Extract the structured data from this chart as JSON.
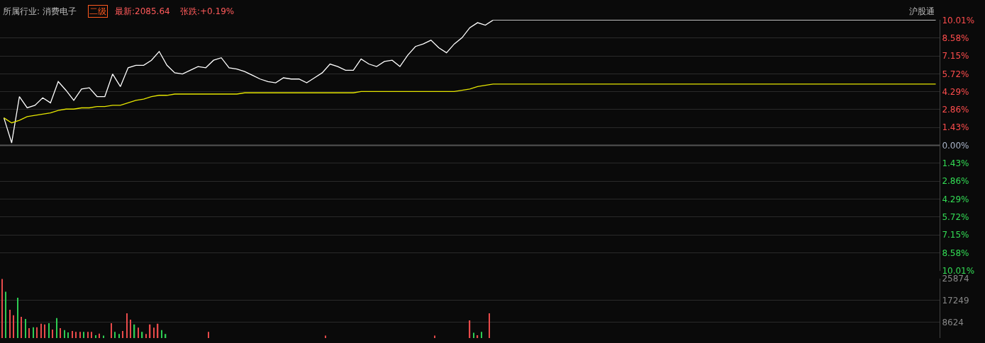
{
  "chart_data": [
    {
      "type": "line",
      "annotations": [
        "所属行业: 消费电子",
        "二级",
        "最新:2085.64",
        "张跌:+0.19%",
        "沪股通"
      ],
      "categories": [
        null,
        null,
        null,
        null,
        null,
        null,
        null,
        null,
        null,
        null,
        null,
        null,
        null,
        null,
        null,
        null,
        null,
        null,
        null,
        null,
        null,
        null,
        null,
        null,
        null,
        null,
        null,
        null,
        null,
        null,
        null,
        null,
        null,
        null,
        null,
        null,
        null,
        null,
        null,
        null,
        null,
        null,
        null,
        null,
        null,
        null,
        null,
        null,
        null,
        null,
        null,
        null,
        null,
        null,
        null,
        null,
        null,
        null,
        null,
        null,
        null,
        null,
        null,
        null,
        null,
        null,
        null,
        null,
        null,
        null,
        null,
        null,
        null,
        null,
        null,
        null,
        null,
        null,
        null,
        null,
        null,
        null,
        null,
        null,
        null,
        null,
        null,
        null,
        null,
        null,
        null,
        null,
        null,
        null,
        null,
        null,
        null,
        null,
        null,
        null,
        null,
        null,
        null,
        null,
        null,
        null,
        null,
        null,
        null,
        null,
        null,
        null,
        null,
        null,
        null,
        null,
        null,
        null,
        null,
        null,
        null
      ],
      "series": [
        {
          "color": "#ffffff",
          "values": [
            2.2,
            0.2,
            3.9,
            3.0,
            3.2,
            3.8,
            3.4,
            5.1,
            4.4,
            3.6,
            4.5,
            4.6,
            3.9,
            3.9,
            5.7,
            4.7,
            6.2,
            6.4,
            6.4,
            6.8,
            7.5,
            6.4,
            5.8,
            5.7,
            6.0,
            6.3,
            6.2,
            6.8,
            7.0,
            6.2,
            6.1,
            5.9,
            5.6,
            5.3,
            5.1,
            5.0,
            5.4,
            5.3,
            5.3,
            5.0,
            5.4,
            5.8,
            6.5,
            6.3,
            6.0,
            6.0,
            6.9,
            6.5,
            6.3,
            6.7,
            6.8,
            6.3,
            7.2,
            7.9,
            8.1,
            8.4,
            7.8,
            7.4,
            8.1,
            8.6,
            9.4,
            9.8,
            9.6,
            10.01,
            10.01,
            10.01,
            10.01,
            10.01,
            10.01,
            10.01,
            10.01,
            10.01,
            10.01,
            10.01,
            10.01,
            10.01,
            10.01,
            10.01,
            10.01,
            10.01,
            10.01,
            10.01,
            10.01,
            10.01,
            10.01,
            10.01,
            10.01,
            10.01,
            10.01,
            10.01,
            10.01,
            10.01,
            10.01,
            10.01,
            10.01,
            10.01,
            10.01,
            10.01,
            10.01,
            10.01,
            10.01,
            10.01,
            10.01,
            10.01,
            10.01,
            10.01,
            10.01,
            10.01,
            10.01,
            10.01,
            10.01,
            10.01,
            10.01,
            10.01,
            10.01,
            10.01,
            10.01,
            10.01,
            10.01,
            10.01,
            10.01
          ]
        },
        {
          "color": "#e6e600",
          "values": [
            2.2,
            1.8,
            2.0,
            2.3,
            2.4,
            2.5,
            2.6,
            2.8,
            2.9,
            2.9,
            3.0,
            3.0,
            3.1,
            3.1,
            3.2,
            3.2,
            3.4,
            3.6,
            3.7,
            3.9,
            4.0,
            4.0,
            4.1,
            4.1,
            4.1,
            4.1,
            4.1,
            4.1,
            4.1,
            4.1,
            4.1,
            4.2,
            4.2,
            4.2,
            4.2,
            4.2,
            4.2,
            4.2,
            4.2,
            4.2,
            4.2,
            4.2,
            4.2,
            4.2,
            4.2,
            4.2,
            4.3,
            4.3,
            4.3,
            4.3,
            4.3,
            4.3,
            4.3,
            4.3,
            4.3,
            4.3,
            4.3,
            4.3,
            4.3,
            4.4,
            4.5,
            4.7,
            4.8,
            4.9,
            4.9,
            4.9,
            4.9,
            4.9,
            4.9,
            4.9,
            4.9,
            4.9,
            4.9,
            4.9,
            4.9,
            4.9,
            4.9,
            4.9,
            4.9,
            4.9,
            4.9,
            4.9,
            4.9,
            4.9,
            4.9,
            4.9,
            4.9,
            4.9,
            4.9,
            4.9,
            4.9,
            4.9,
            4.9,
            4.9,
            4.9,
            4.9,
            4.9,
            4.9,
            4.9,
            4.9,
            4.9,
            4.9,
            4.9,
            4.9,
            4.9,
            4.9,
            4.9,
            4.9,
            4.9,
            4.9,
            4.9,
            4.9,
            4.9,
            4.9,
            4.9,
            4.9,
            4.9,
            4.9,
            4.9,
            4.9,
            4.9
          ]
        }
      ],
      "ylim": [
        -10.01,
        10.01
      ],
      "yticks": [
        {
          "value": 10.01,
          "label": "10.01%"
        },
        {
          "value": 8.58,
          "label": "8.58%"
        },
        {
          "value": 7.15,
          "label": "7.15%"
        },
        {
          "value": 5.72,
          "label": "5.72%"
        },
        {
          "value": 4.29,
          "label": "4.29%"
        },
        {
          "value": 2.86,
          "label": "2.86%"
        },
        {
          "value": 1.43,
          "label": "1.43%"
        },
        {
          "value": 0,
          "label": "0.00%"
        },
        {
          "value": -1.43,
          "label": "1.43%"
        },
        {
          "value": -2.86,
          "label": "2.86%"
        },
        {
          "value": -4.29,
          "label": "4.29%"
        },
        {
          "value": -5.72,
          "label": "5.72%"
        },
        {
          "value": -7.15,
          "label": "7.15%"
        },
        {
          "value": -8.58,
          "label": "8.58%"
        },
        {
          "value": -10.01,
          "label": "10.01%"
        }
      ],
      "ref_lines": [
        {
          "axis": "y",
          "value": 0,
          "color": "#555555"
        }
      ],
      "grid": "y",
      "legend": false,
      "tick_labels": "y",
      "marker": "none",
      "line_style": "solid"
    },
    {
      "type": "bar",
      "categories": [
        null,
        null,
        null,
        null,
        null,
        null,
        null,
        null,
        null,
        null,
        null,
        null,
        null,
        null,
        null,
        null,
        null,
        null,
        null,
        null,
        null,
        null,
        null,
        null,
        null,
        null,
        null,
        null,
        null,
        null,
        null,
        null,
        null,
        null,
        null,
        null,
        null,
        null,
        null,
        null,
        null,
        null,
        null,
        null,
        null,
        null,
        null,
        null,
        null,
        null,
        null,
        null,
        null,
        null,
        null,
        null,
        null,
        null,
        null,
        null,
        null,
        null,
        null,
        null,
        null,
        null,
        null,
        null,
        null,
        null,
        null,
        null,
        null,
        null,
        null,
        null,
        null,
        null,
        null,
        null,
        null,
        null,
        null,
        null,
        null,
        null,
        null,
        null,
        null,
        null,
        null,
        null,
        null,
        null,
        null,
        null,
        null,
        null,
        null,
        null,
        null,
        null,
        null,
        null,
        null,
        null,
        null,
        null,
        null,
        null,
        null,
        null,
        null,
        null,
        null,
        null,
        null,
        null,
        null,
        null,
        null,
        null,
        null,
        null,
        null,
        null,
        null,
        null,
        null,
        null,
        null,
        null,
        null,
        null,
        null,
        null,
        null,
        null,
        null,
        null,
        null,
        null,
        null,
        null,
        null,
        null,
        null,
        null,
        null,
        null,
        null,
        null,
        null,
        null,
        null,
        null,
        null,
        null,
        null,
        null,
        null,
        null,
        null,
        null,
        null,
        null,
        null,
        null,
        null,
        null,
        null,
        null,
        null,
        null,
        null,
        null,
        null,
        null,
        null,
        null,
        null,
        null,
        null,
        null,
        null,
        null,
        null,
        null,
        null,
        null,
        null,
        null,
        null,
        null,
        null,
        null,
        null,
        null,
        null,
        null,
        null,
        null,
        null,
        null,
        null,
        null,
        null,
        null,
        null,
        null,
        null,
        null,
        null,
        null,
        null,
        null,
        null,
        null,
        null,
        null,
        null,
        null,
        null,
        null,
        null,
        null,
        null,
        null,
        null,
        null,
        null,
        null,
        null,
        null,
        null,
        null,
        null,
        null,
        null,
        null,
        null
      ],
      "values": [
        25600,
        20600,
        13600,
        11400,
        18300,
        10800,
        10000,
        6400,
        6700,
        6700,
        8100,
        7800,
        8300,
        5800,
        10300,
        6400,
        5600,
        4700,
        5300,
        4900,
        4900,
        4900,
        4900,
        4900,
        3600,
        4200,
        3500,
        null,
        8300,
        4900,
        4100,
        5300,
        12200,
        9700,
        7800,
        6600,
        4900,
        4100,
        7800,
        6600,
        8100,
        5600,
        4100,
        null,
        null,
        null,
        null,
        null,
        null,
        null,
        null,
        null,
        null,
        4900,
        null,
        null,
        null,
        null,
        null,
        null,
        null,
        null,
        null,
        null,
        null,
        null,
        null,
        null,
        null,
        null,
        null,
        null,
        null,
        null,
        null,
        null,
        null,
        null,
        null,
        null,
        null,
        null,
        null,
        3500,
        null,
        null,
        null,
        null,
        null,
        null,
        null,
        null,
        null,
        null,
        null,
        null,
        null,
        null,
        null,
        null,
        null,
        null,
        null,
        null,
        null,
        null,
        null,
        null,
        null,
        null,
        null,
        3500,
        null,
        null,
        null,
        null,
        null,
        null,
        null,
        null,
        9400,
        4600,
        3600,
        4900,
        null,
        12200,
        null,
        null,
        null,
        null,
        null,
        null,
        null,
        null,
        null,
        null,
        null,
        null,
        null,
        null,
        null,
        null,
        null,
        null,
        null,
        null,
        null,
        null,
        null,
        null,
        null,
        null,
        null,
        null,
        null,
        null,
        null,
        null,
        null,
        null,
        null,
        null,
        null,
        null,
        null,
        null,
        null,
        null,
        null,
        null,
        null,
        null,
        null,
        null,
        null,
        null,
        null,
        null,
        null,
        null,
        null,
        null,
        null,
        null,
        null,
        null,
        null,
        null,
        null,
        null,
        null,
        null,
        null,
        null,
        null,
        null,
        null,
        null,
        null,
        null,
        null,
        null,
        null,
        null,
        null,
        null,
        null,
        null,
        null,
        null,
        null,
        null,
        null,
        null,
        null,
        null,
        null,
        null,
        null,
        null,
        null,
        null,
        null,
        null,
        null,
        null,
        null,
        null,
        null,
        null,
        null,
        null,
        null,
        null,
        null,
        null,
        null,
        null,
        null,
        null,
        null
      ],
      "colors": [
        "#e84a4a",
        "#2ecc52",
        "#e84a4a",
        "#e84a4a",
        "#2ecc52",
        "#e84a4a",
        "#2ecc52",
        "#e84a4a",
        "#2ecc52",
        "#e84a4a",
        "#e84a4a",
        "#e84a4a",
        "#2ecc52",
        "#e84a4a",
        "#2ecc52",
        "#e84a4a",
        "#2ecc52",
        "#2ecc52",
        "#e84a4a",
        "#e84a4a",
        "#e84a4a",
        "#2ecc52",
        "#e84a4a",
        "#e84a4a",
        "#2ecc52",
        "#e84a4a",
        "#2ecc52",
        null,
        "#e84a4a",
        "#2ecc52",
        "#2ecc52",
        "#e84a4a",
        "#e84a4a",
        "#e84a4a",
        "#2ecc52",
        "#e84a4a",
        "#2ecc52",
        "#e84a4a",
        "#e84a4a",
        "#e84a4a",
        "#e84a4a",
        "#2ecc52",
        "#2ecc52",
        null,
        null,
        null,
        null,
        null,
        null,
        null,
        null,
        null,
        null,
        "#e84a4a",
        null,
        null,
        null,
        null,
        null,
        null,
        null,
        null,
        null,
        null,
        null,
        null,
        null,
        null,
        null,
        null,
        null,
        null,
        null,
        null,
        null,
        null,
        null,
        null,
        null,
        null,
        null,
        null,
        null,
        "#e84a4a",
        null,
        null,
        null,
        null,
        null,
        null,
        null,
        null,
        null,
        null,
        null,
        null,
        null,
        null,
        null,
        null,
        null,
        null,
        null,
        null,
        null,
        null,
        null,
        null,
        null,
        null,
        null,
        "#e84a4a",
        null,
        null,
        null,
        null,
        null,
        null,
        null,
        null,
        "#e84a4a",
        "#2ecc52",
        "#e84a4a",
        "#2ecc52",
        null,
        "#e84a4a",
        null,
        null,
        null,
        null,
        null,
        null,
        null,
        null,
        null,
        null,
        null,
        null,
        null,
        null,
        null,
        null,
        null,
        null,
        null,
        null,
        null,
        null,
        null,
        null,
        null,
        null,
        null,
        null,
        null,
        null,
        null,
        null,
        null,
        null,
        null,
        null,
        null,
        null,
        null,
        null,
        null,
        null,
        null,
        null,
        null,
        null,
        null,
        null,
        null,
        null,
        null,
        null,
        null,
        null,
        null,
        null,
        null,
        null,
        null,
        null,
        null,
        null,
        null,
        null,
        null,
        null,
        null,
        null,
        null,
        null,
        null,
        null,
        null,
        null,
        null,
        null,
        null,
        null,
        null,
        null,
        null,
        null,
        null,
        null,
        null,
        null,
        null,
        null,
        null,
        null,
        null,
        null,
        null,
        null,
        null,
        null,
        null,
        null,
        null,
        null,
        null,
        null,
        null,
        null,
        null,
        null,
        null,
        null,
        null,
        null,
        null,
        null,
        null,
        null,
        null
      ],
      "ylim": [
        2500,
        25874
      ],
      "yticks": [
        8624,
        17249,
        25874
      ],
      "grid": "y",
      "legend": false,
      "tick_labels": "y"
    }
  ]
}
